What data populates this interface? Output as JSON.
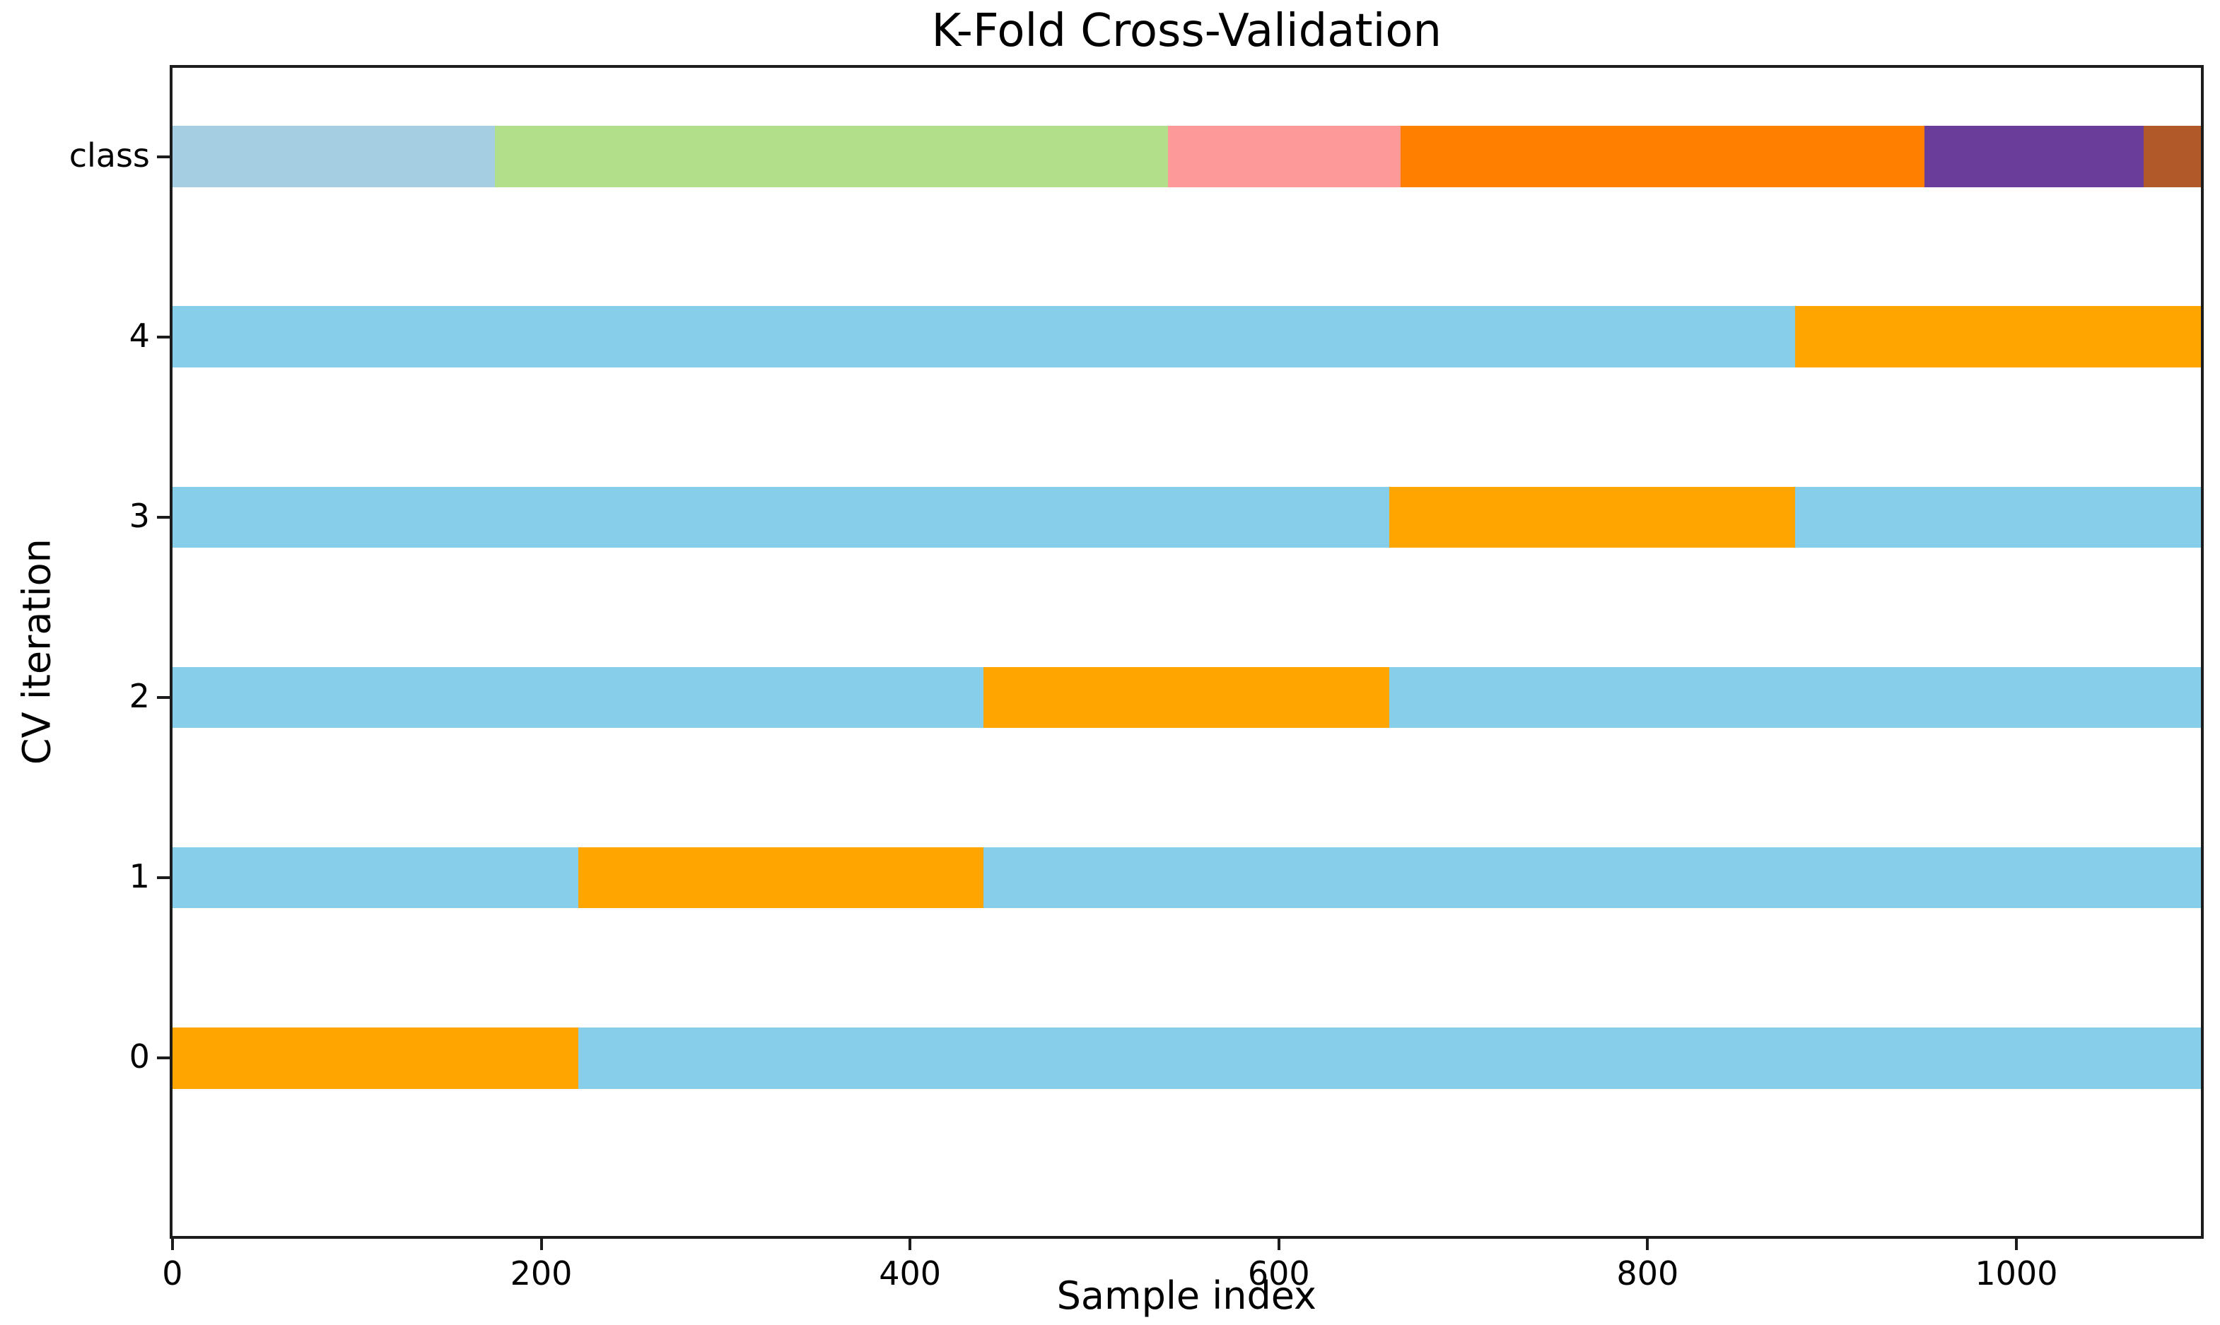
{
  "chart_data": {
    "type": "bar",
    "title": "K-Fold Cross-Validation",
    "xlabel": "Sample index",
    "ylabel": "CV iteration",
    "xlim": [
      0,
      1100
    ],
    "xticks": [
      0,
      200,
      400,
      600,
      800,
      1000
    ],
    "yticklabels": [
      "class",
      "4",
      "3",
      "2",
      "1",
      "0"
    ],
    "n_splits": 5,
    "n_samples": 1100,
    "fold_size": 220,
    "grid": false,
    "legend": "none",
    "colors": {
      "train": "#87ceeb",
      "test": "#ffa500",
      "classes": [
        "#a6cee3",
        "#b2df8a",
        "#fb9a99",
        "#ff7f00",
        "#6a3d9a",
        "#b15928"
      ],
      "spine": "#1c1c1c"
    },
    "class_row": {
      "label": "class",
      "segments": [
        {
          "class_index": 0,
          "start": 0,
          "end": 175,
          "color": "#a6cee3"
        },
        {
          "class_index": 1,
          "start": 175,
          "end": 540,
          "color": "#b2df8a"
        },
        {
          "class_index": 2,
          "start": 540,
          "end": 666,
          "color": "#fb9a99"
        },
        {
          "class_index": 3,
          "start": 666,
          "end": 950,
          "color": "#ff7f00"
        },
        {
          "class_index": 4,
          "start": 950,
          "end": 1069,
          "color": "#6a3d9a"
        },
        {
          "class_index": 5,
          "start": 1069,
          "end": 1100,
          "color": "#b15928"
        }
      ]
    },
    "cv_rows": [
      {
        "label": "4",
        "test_start": 880,
        "test_end": 1100
      },
      {
        "label": "3",
        "test_start": 660,
        "test_end": 880
      },
      {
        "label": "2",
        "test_start": 440,
        "test_end": 660
      },
      {
        "label": "1",
        "test_start": 220,
        "test_end": 440
      },
      {
        "label": "0",
        "test_start": 0,
        "test_end": 220
      }
    ]
  }
}
